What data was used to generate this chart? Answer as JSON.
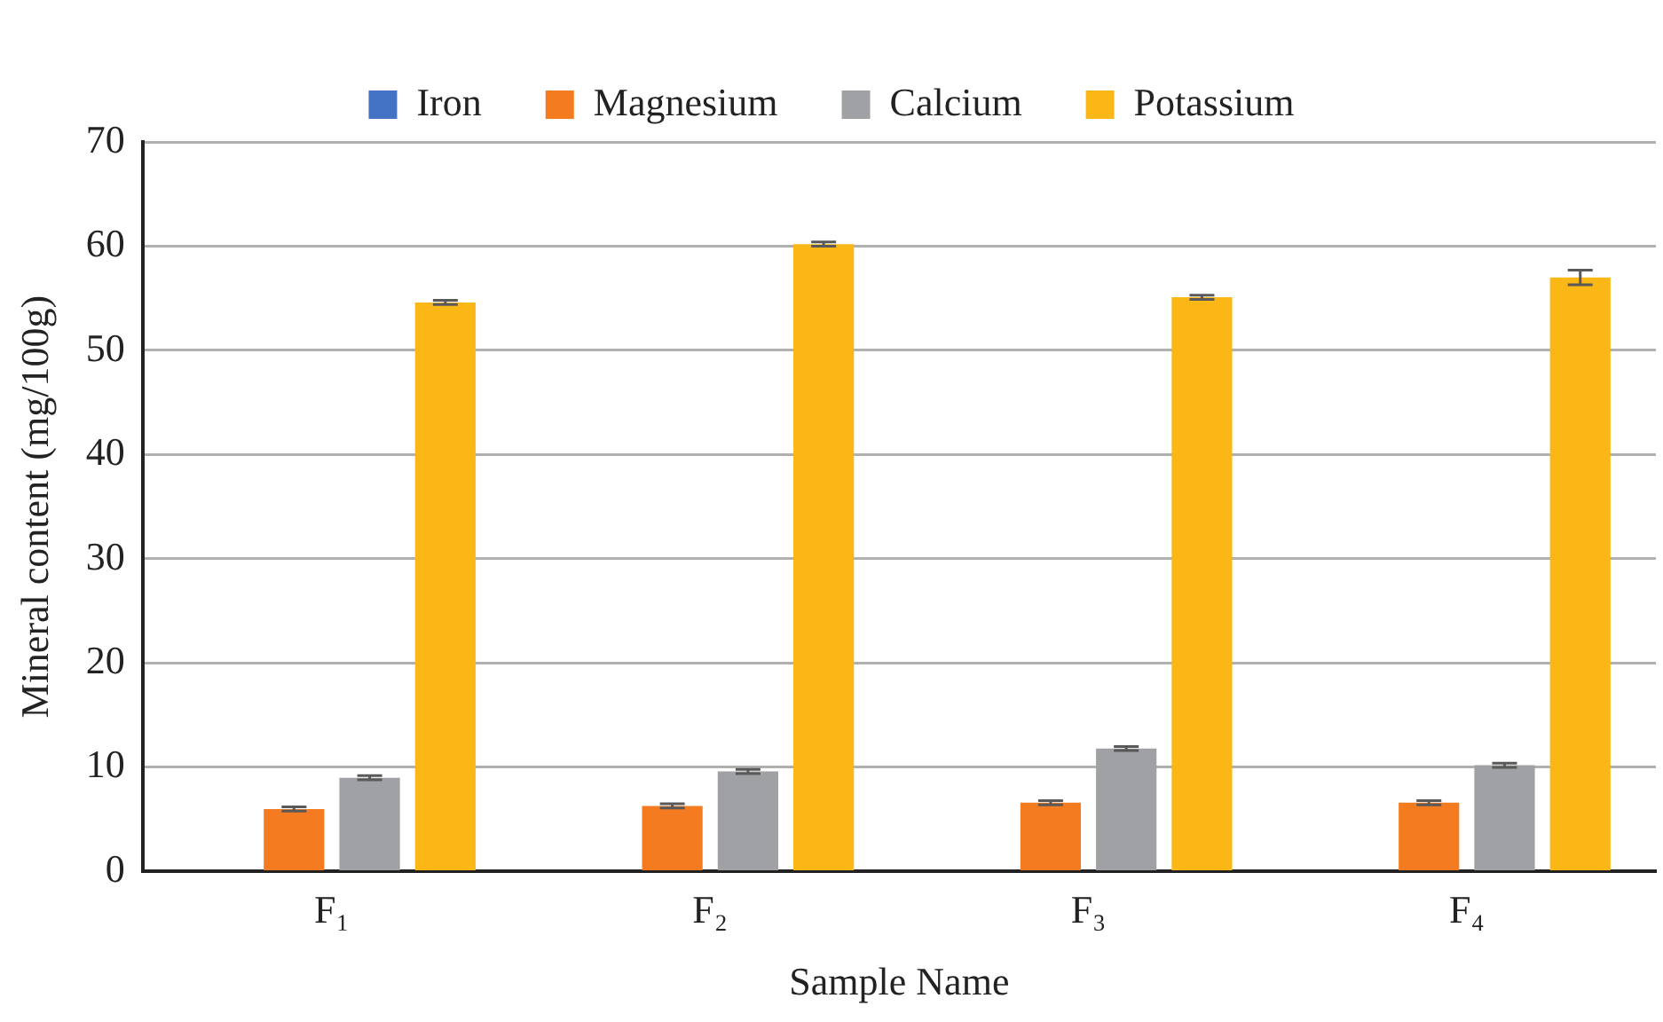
{
  "chart_data": {
    "type": "bar",
    "xlabel": "Sample Name",
    "ylabel": "Mineral content (mg/100g)",
    "categories": [
      "F₁",
      "F₂",
      "F₃",
      "F₄"
    ],
    "series": [
      {
        "name": "Iron",
        "color": "#4472c4",
        "values": [
          0,
          0,
          0,
          0
        ]
      },
      {
        "name": "Magnesium",
        "color": "#f47b20",
        "values": [
          6.0,
          6.3,
          6.6,
          6.6
        ],
        "errors": [
          0.2,
          0.2,
          0.2,
          0.2
        ]
      },
      {
        "name": "Calcium",
        "color": "#a0a1a4",
        "values": [
          9.0,
          9.6,
          11.8,
          10.2
        ],
        "errors": [
          0.2,
          0.2,
          0.2,
          0.2
        ]
      },
      {
        "name": "Potassium",
        "color": "#fbb716",
        "values": [
          54.6,
          60.2,
          55.1,
          57.0
        ],
        "errors": [
          0.2,
          0.2,
          0.2,
          0.7
        ]
      }
    ],
    "ylim": [
      0,
      70
    ],
    "yticks": [
      0,
      10,
      20,
      30,
      40,
      50,
      60,
      70
    ],
    "grid": "y",
    "legend": "top"
  }
}
